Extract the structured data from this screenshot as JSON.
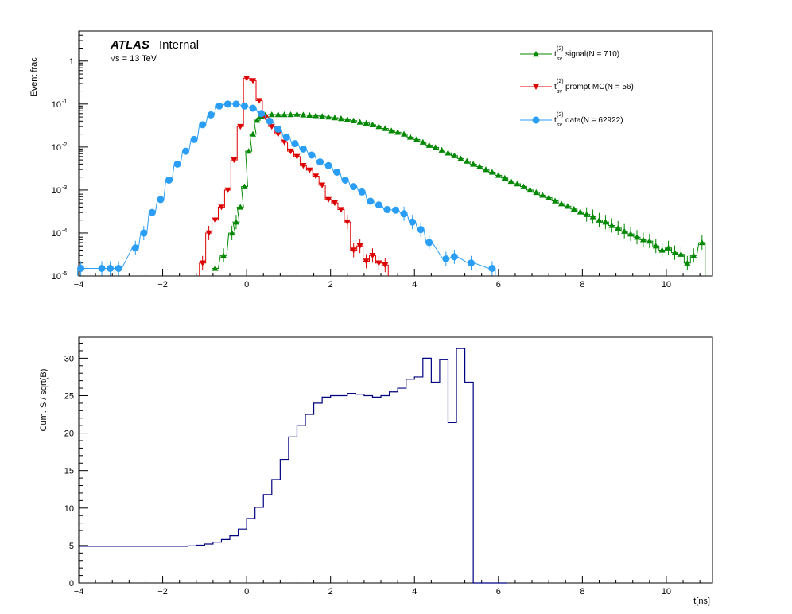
{
  "chart_data": [
    {
      "type": "line",
      "panel": "top",
      "ylabel": "Event frac",
      "yscale": "log",
      "xlim": [
        -4,
        11.1
      ],
      "ylim": [
        1e-05,
        5
      ],
      "x_ticks": [
        "−4",
        "−2",
        "0",
        "2",
        "4",
        "6",
        "8",
        "10"
      ],
      "y_ticks": [
        {
          "base": "10",
          "exp": "-5"
        },
        {
          "base": "10",
          "exp": "-4"
        },
        {
          "base": "10",
          "exp": "-3"
        },
        {
          "base": "10",
          "exp": "-2"
        },
        {
          "base": "10",
          "exp": "-1"
        },
        {
          "base": "1",
          "exp": ""
        }
      ],
      "atlas_label": "ATLAS",
      "atlas_sublabel": "Internal",
      "energy_label": "√s = 13 TeV",
      "legend_position": "top-right",
      "series": [
        {
          "name": "t",
          "sup": "(2)",
          "sub": "sv",
          "legend_suffix": " signal(N = 710)",
          "color": "#008800",
          "marker": "triangle-up",
          "x": [
            -0.75,
            -0.55,
            -0.35,
            -0.25,
            -0.15,
            -0.05,
            0.05,
            0.15,
            0.25,
            0.35,
            0.45,
            0.6,
            0.75,
            0.9,
            1.05,
            1.2,
            1.35,
            1.5,
            1.65,
            1.8,
            1.95,
            2.1,
            2.25,
            2.4,
            2.55,
            2.7,
            2.85,
            3.0,
            3.15,
            3.3,
            3.45,
            3.6,
            3.75,
            3.9,
            4.05,
            4.2,
            4.35,
            4.5,
            4.65,
            4.8,
            4.95,
            5.1,
            5.25,
            5.4,
            5.55,
            5.7,
            5.85,
            6.0,
            6.15,
            6.3,
            6.45,
            6.6,
            6.75,
            6.9,
            7.05,
            7.2,
            7.35,
            7.5,
            7.65,
            7.8,
            7.95,
            8.1,
            8.25,
            8.4,
            8.55,
            8.7,
            8.85,
            9.0,
            9.15,
            9.3,
            9.45,
            9.6,
            9.75,
            9.9,
            10.05,
            10.2,
            10.35,
            10.5,
            10.65,
            10.85
          ],
          "values": [
            1.5e-05,
            3e-05,
            0.0001,
            0.00018,
            0.0004,
            0.0012,
            0.008,
            0.02,
            0.042,
            0.052,
            0.056,
            0.057,
            0.057,
            0.057,
            0.057,
            0.058,
            0.056,
            0.055,
            0.054,
            0.052,
            0.05,
            0.048,
            0.046,
            0.044,
            0.041,
            0.038,
            0.036,
            0.033,
            0.03,
            0.027,
            0.024,
            0.022,
            0.02,
            0.017,
            0.015,
            0.013,
            0.011,
            0.0098,
            0.0085,
            0.0073,
            0.0063,
            0.0054,
            0.0047,
            0.004,
            0.0035,
            0.003,
            0.0026,
            0.0022,
            0.0019,
            0.0016,
            0.0014,
            0.0012,
            0.001,
            0.00088,
            0.00076,
            0.00066,
            0.00056,
            0.00048,
            0.00042,
            0.00036,
            0.00031,
            0.00027,
            0.00024,
            0.0002,
            0.00018,
            0.00015,
            0.00013,
            0.00011,
            9.5e-05,
            8e-05,
            7e-05,
            6.5e-05,
            5e-05,
            4e-05,
            4.5e-05,
            3.5e-05,
            3.2e-05,
            2e-05,
            3e-05,
            6e-05
          ]
        },
        {
          "name": "t",
          "sup": "(2)",
          "sub": "sv",
          "legend_suffix": " prompt MC(N = 56)",
          "color": "#dd0000",
          "marker": "triangle-down",
          "x": [
            -1.05,
            -0.9,
            -0.75,
            -0.6,
            -0.45,
            -0.3,
            -0.15,
            0.0,
            0.15,
            0.3,
            0.45,
            0.6,
            0.75,
            0.9,
            1.05,
            1.2,
            1.35,
            1.5,
            1.65,
            1.8,
            1.95,
            2.1,
            2.25,
            2.4,
            2.55,
            2.7,
            2.85,
            3.0,
            3.15,
            3.3
          ],
          "values": [
            2e-05,
            0.0001,
            0.0002,
            0.0004,
            0.001,
            0.005,
            0.03,
            0.4,
            0.35,
            0.12,
            0.05,
            0.03,
            0.02,
            0.013,
            0.008,
            0.006,
            0.0037,
            0.0029,
            0.0021,
            0.0013,
            0.0006,
            0.0005,
            0.00035,
            0.00018,
            4e-05,
            5e-05,
            2.2e-05,
            3e-05,
            2e-05,
            1.8e-05
          ]
        },
        {
          "name": "t",
          "sup": "(2)",
          "sub": "sv",
          "legend_suffix": " data(N = 62922)",
          "color": "#2a9df4",
          "marker": "circle",
          "x": [
            -3.95,
            -3.45,
            -3.25,
            -3.05,
            -2.65,
            -2.45,
            -2.25,
            -2.05,
            -1.85,
            -1.65,
            -1.45,
            -1.25,
            -1.05,
            -0.85,
            -0.65,
            -0.45,
            -0.25,
            -0.05,
            0.15,
            0.35,
            0.55,
            0.75,
            0.95,
            1.15,
            1.35,
            1.55,
            1.75,
            1.95,
            2.15,
            2.35,
            2.55,
            2.75,
            2.95,
            3.15,
            3.35,
            3.55,
            3.75,
            3.95,
            4.15,
            4.35,
            4.75,
            4.95,
            5.35,
            5.85
          ],
          "values": [
            1.5e-05,
            1.5e-05,
            1.5e-05,
            1.5e-05,
            4.5e-05,
            0.0001,
            0.0003,
            0.0006,
            0.0017,
            0.004,
            0.008,
            0.015,
            0.033,
            0.056,
            0.09,
            0.1,
            0.1,
            0.09,
            0.08,
            0.06,
            0.04,
            0.026,
            0.017,
            0.012,
            0.009,
            0.0065,
            0.0045,
            0.0037,
            0.0026,
            0.0017,
            0.0012,
            0.0009,
            0.00055,
            0.00045,
            0.00035,
            0.00034,
            0.00028,
            0.00018,
            0.00012,
            6e-05,
            2.5e-05,
            2.8e-05,
            2e-05,
            1.5e-05
          ]
        }
      ]
    },
    {
      "type": "line",
      "panel": "bottom",
      "xlabel": "t[ns]",
      "ylabel": "Cum. S / sqrt(B)",
      "xlim": [
        -4,
        11.1
      ],
      "ylim": [
        0,
        32.8
      ],
      "x_ticks": [
        "−4",
        "−2",
        "0",
        "2",
        "4",
        "6",
        "8",
        "10"
      ],
      "y_ticks": [
        "0",
        "5",
        "10",
        "15",
        "20",
        "25",
        "30"
      ],
      "series": [
        {
          "color": "#000080",
          "x": [
            -4.0,
            -3.8,
            -3.6,
            -3.4,
            -3.2,
            -3.0,
            -2.8,
            -2.6,
            -2.4,
            -2.2,
            -2.0,
            -1.8,
            -1.6,
            -1.4,
            -1.2,
            -1.0,
            -0.8,
            -0.6,
            -0.4,
            -0.2,
            0.0,
            0.2,
            0.4,
            0.6,
            0.8,
            1.0,
            1.2,
            1.4,
            1.6,
            1.8,
            2.0,
            2.2,
            2.4,
            2.6,
            2.8,
            3.0,
            3.2,
            3.4,
            3.6,
            3.8,
            4.0,
            4.2,
            4.4,
            4.6,
            4.8,
            5.0,
            5.2,
            5.4,
            5.6,
            5.8,
            6.0
          ],
          "values": [
            4.9,
            4.9,
            4.9,
            4.9,
            4.9,
            4.9,
            4.9,
            4.9,
            4.9,
            4.9,
            4.9,
            4.9,
            4.9,
            4.95,
            5.05,
            5.2,
            5.45,
            5.8,
            6.3,
            7.2,
            8.6,
            10.1,
            11.8,
            13.8,
            16.5,
            19.5,
            21.0,
            22.5,
            24.0,
            24.8,
            25.0,
            25.0,
            25.3,
            25.2,
            25.0,
            24.8,
            25.0,
            25.5,
            26.0,
            27.2,
            27.5,
            30.0,
            26.8,
            29.8,
            21.4,
            31.3,
            26.8,
            0,
            0,
            0,
            0
          ]
        }
      ]
    }
  ]
}
